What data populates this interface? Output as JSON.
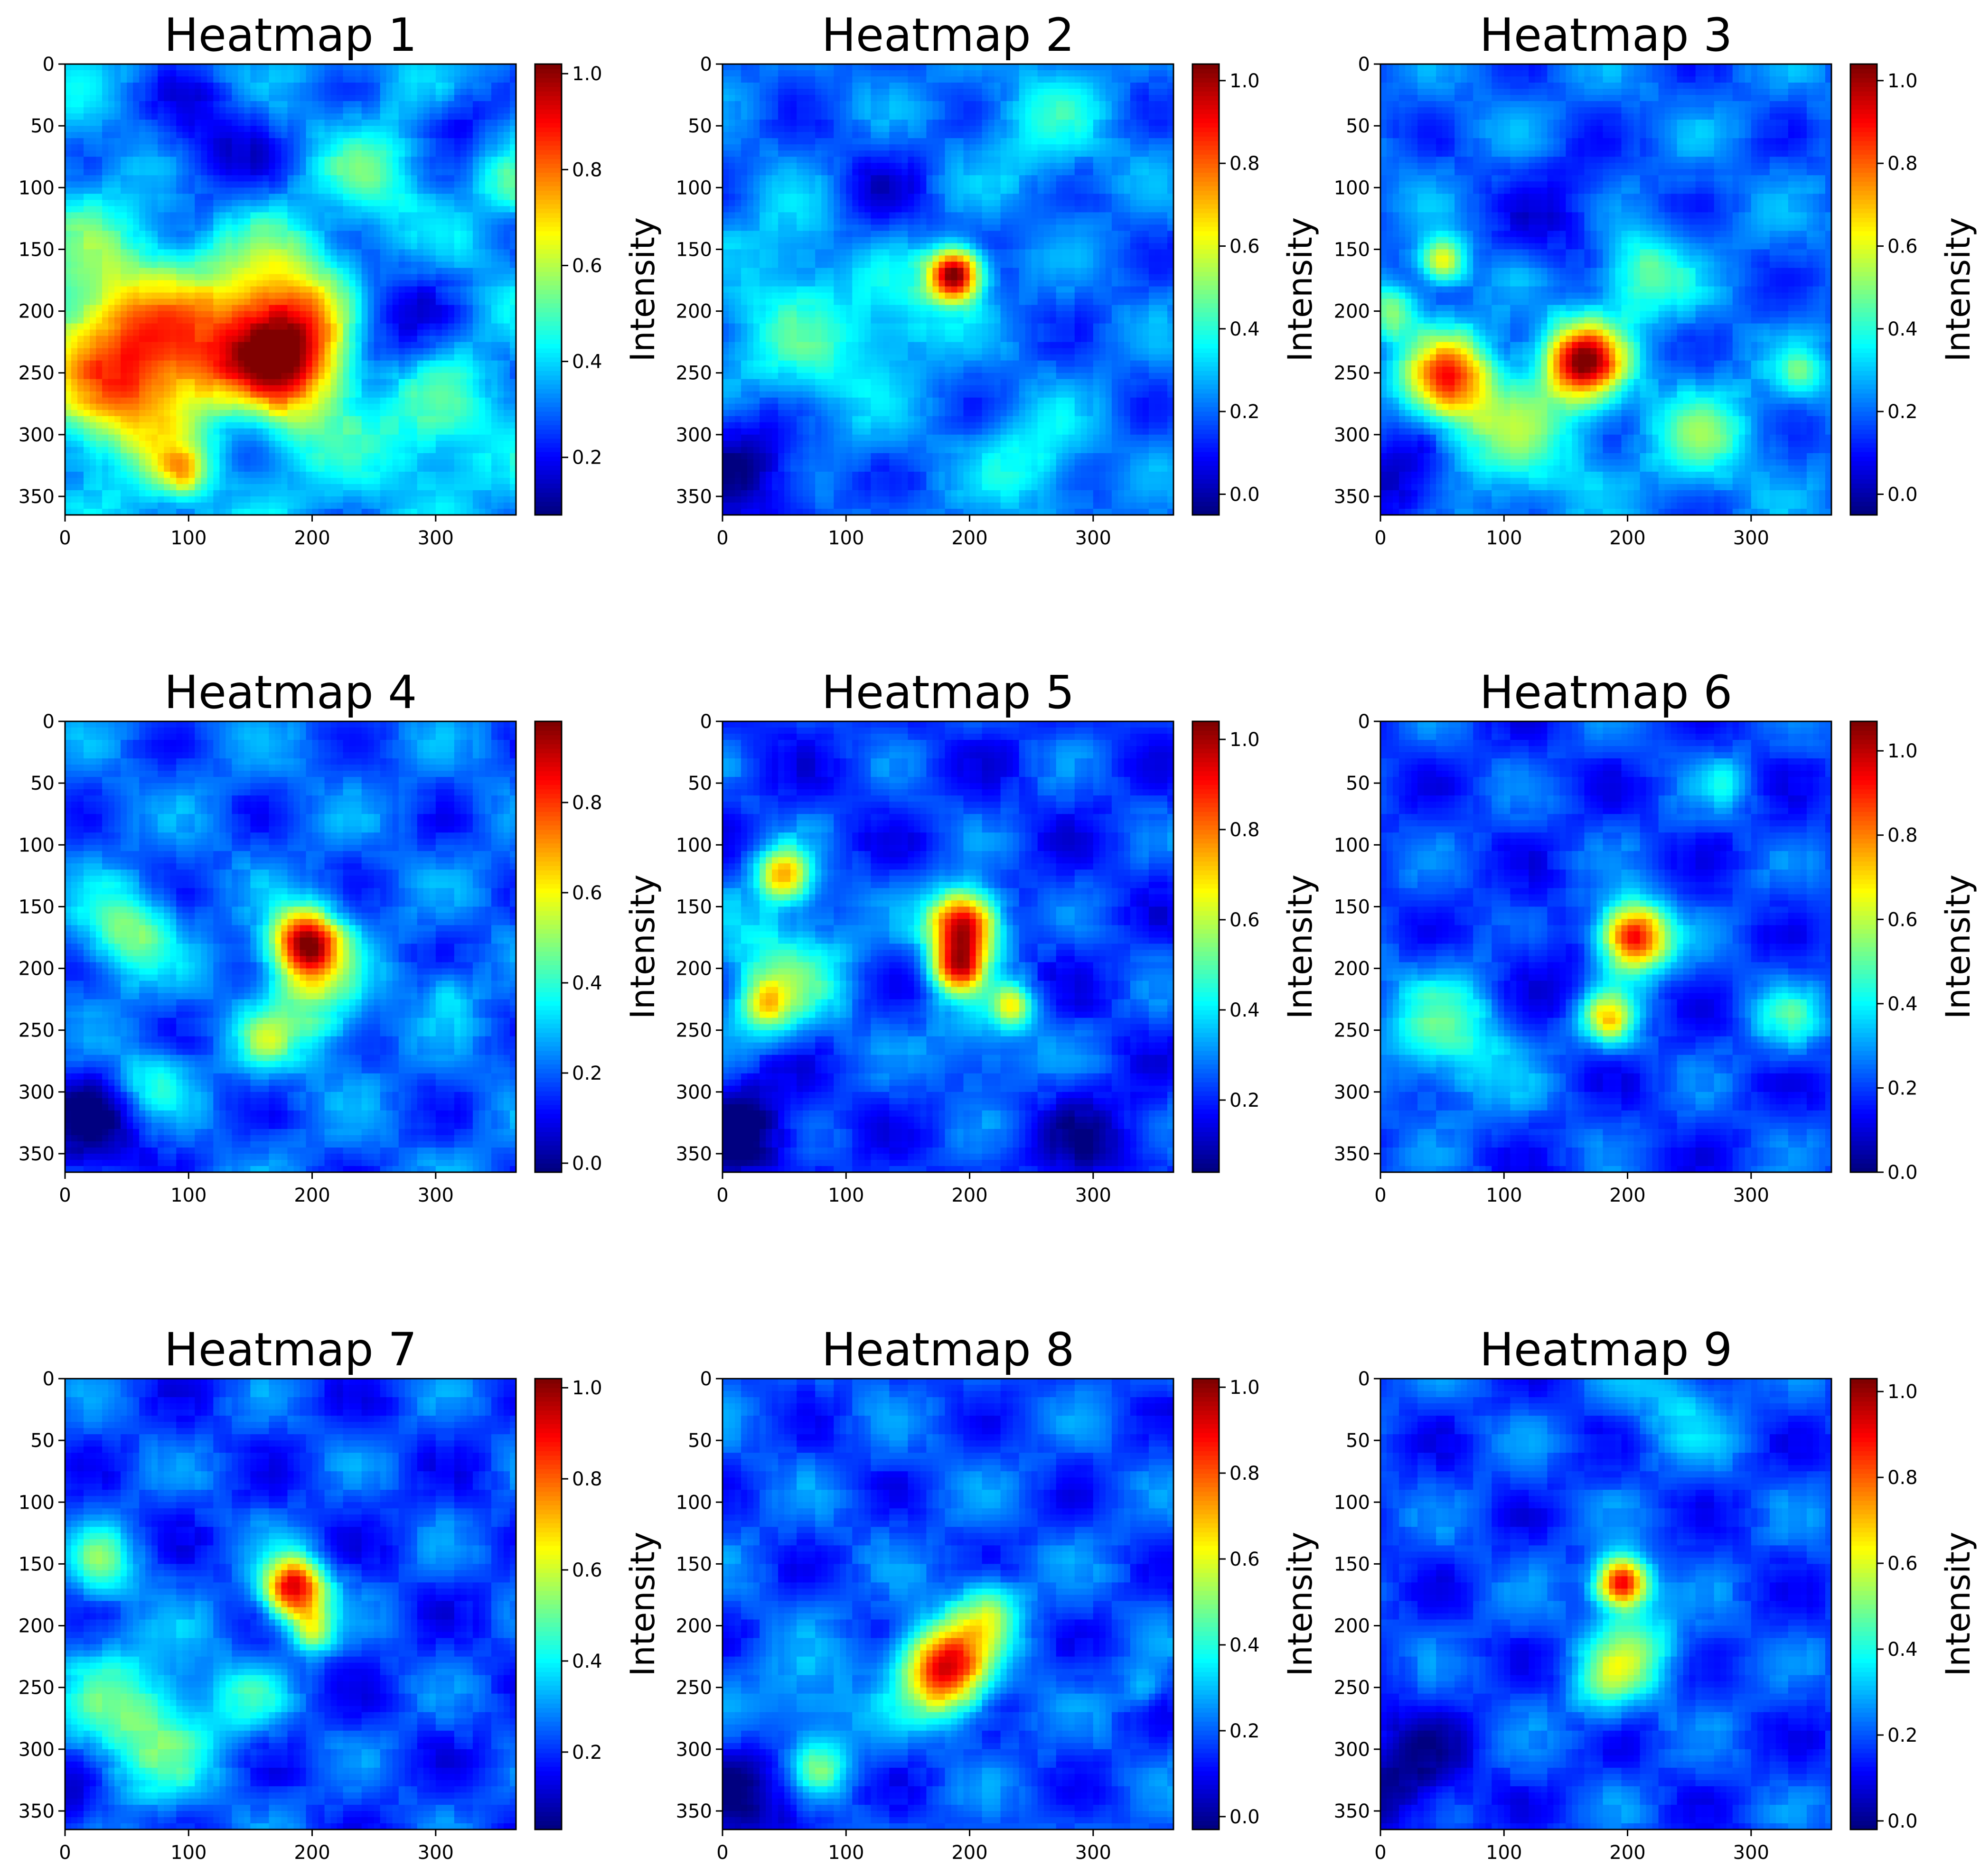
{
  "colormap": "jet",
  "chart_data": [
    {
      "type": "heatmap",
      "title": "Heatmap 1",
      "xticks": [
        "0",
        "100",
        "200",
        "300"
      ],
      "yticks": [
        "0",
        "50",
        "100",
        "150",
        "200",
        "250",
        "300",
        "350"
      ],
      "xlim": [
        0,
        365
      ],
      "ylim": [
        365,
        0
      ],
      "colorbar": {
        "label": "Intensity",
        "ticks": [
          "0.2",
          "0.4",
          "0.6",
          "0.8",
          "1.0"
        ],
        "min": 0.08,
        "max": 1.02
      },
      "base": 0.35,
      "blobs": [
        [
          175,
          225,
          45,
          0.75
        ],
        [
          60,
          255,
          45,
          0.45
        ],
        [
          95,
          330,
          15,
          0.25
        ],
        [
          30,
          190,
          50,
          0.2
        ],
        [
          300,
          290,
          35,
          0.15
        ],
        [
          250,
          90,
          25,
          0.15
        ],
        [
          360,
          100,
          15,
          0.15
        ]
      ],
      "lows": [
        [
          250,
          210,
          35,
          0.28
        ],
        [
          120,
          60,
          40,
          0.18
        ],
        [
          140,
          290,
          25,
          0.18
        ],
        [
          320,
          40,
          20,
          0.15
        ]
      ]
    },
    {
      "type": "heatmap",
      "title": "Heatmap 2",
      "xticks": [
        "0",
        "100",
        "200",
        "300"
      ],
      "yticks": [
        "0",
        "50",
        "100",
        "150",
        "200",
        "250",
        "300",
        "350"
      ],
      "xlim": [
        0,
        365
      ],
      "ylim": [
        365,
        0
      ],
      "colorbar": {
        "label": "Intensity",
        "ticks": [
          "0.0",
          "0.2",
          "0.4",
          "0.6",
          "0.8",
          "1.0"
        ],
        "min": -0.05,
        "max": 1.04
      },
      "base": 0.2,
      "blobs": [
        [
          188,
          170,
          15,
          0.85
        ],
        [
          60,
          240,
          50,
          0.2
        ],
        [
          250,
          320,
          30,
          0.18
        ],
        [
          150,
          200,
          30,
          0.15
        ],
        [
          260,
          50,
          35,
          0.15
        ],
        [
          60,
          140,
          30,
          0.12
        ]
      ],
      "lows": [
        [
          20,
          320,
          40,
          0.25
        ],
        [
          120,
          110,
          30,
          0.12
        ]
      ]
    },
    {
      "type": "heatmap",
      "title": "Heatmap 3",
      "xticks": [
        "0",
        "100",
        "200",
        "300"
      ],
      "yticks": [
        "0",
        "50",
        "100",
        "150",
        "200",
        "250",
        "300",
        "350"
      ],
      "xlim": [
        0,
        365
      ],
      "ylim": [
        365,
        0
      ],
      "colorbar": {
        "label": "Intensity",
        "ticks": [
          "0.0",
          "0.2",
          "0.4",
          "0.6",
          "0.8",
          "1.0"
        ],
        "min": -0.05,
        "max": 1.04
      },
      "base": 0.2,
      "blobs": [
        [
          165,
          240,
          22,
          0.8
        ],
        [
          55,
          255,
          25,
          0.6
        ],
        [
          50,
          160,
          13,
          0.45
        ],
        [
          10,
          200,
          15,
          0.3
        ],
        [
          210,
          170,
          25,
          0.3
        ],
        [
          110,
          300,
          40,
          0.25
        ],
        [
          260,
          300,
          30,
          0.25
        ],
        [
          340,
          250,
          15,
          0.2
        ]
      ],
      "lows": [
        [
          20,
          340,
          30,
          0.2
        ],
        [
          150,
          120,
          35,
          0.12
        ]
      ]
    },
    {
      "type": "heatmap",
      "title": "Heatmap 4",
      "xticks": [
        "0",
        "100",
        "200",
        "300"
      ],
      "yticks": [
        "0",
        "50",
        "100",
        "150",
        "200",
        "250",
        "300",
        "350"
      ],
      "xlim": [
        0,
        365
      ],
      "ylim": [
        365,
        0
      ],
      "colorbar": {
        "label": "Intensity",
        "ticks": [
          "0.0",
          "0.2",
          "0.4",
          "0.6",
          "0.8"
        ],
        "min": -0.02,
        "max": 0.98
      },
      "base": 0.2,
      "blobs": [
        [
          195,
          180,
          20,
          0.75
        ],
        [
          200,
          230,
          30,
          0.25
        ],
        [
          50,
          170,
          25,
          0.3
        ],
        [
          70,
          290,
          20,
          0.2
        ],
        [
          160,
          260,
          15,
          0.2
        ],
        [
          310,
          220,
          15,
          0.15
        ]
      ],
      "lows": [
        [
          20,
          330,
          35,
          0.2
        ]
      ]
    },
    {
      "type": "heatmap",
      "title": "Heatmap 5",
      "xticks": [
        "0",
        "100",
        "200",
        "300"
      ],
      "yticks": [
        "0",
        "50",
        "100",
        "150",
        "200",
        "250",
        "300",
        "350"
      ],
      "xlim": [
        0,
        365
      ],
      "ylim": [
        365,
        0
      ],
      "colorbar": {
        "label": "Intensity",
        "ticks": [
          "0.2",
          "0.4",
          "0.6",
          "0.8",
          "1.0"
        ],
        "min": 0.04,
        "max": 1.04
      },
      "base": 0.22,
      "blobs": [
        [
          195,
          165,
          20,
          0.8
        ],
        [
          190,
          200,
          15,
          0.55
        ],
        [
          235,
          230,
          12,
          0.35
        ],
        [
          50,
          125,
          15,
          0.5
        ],
        [
          35,
          230,
          15,
          0.3
        ],
        [
          50,
          200,
          40,
          0.25
        ],
        [
          210,
          260,
          30,
          0.15
        ]
      ],
      "lows": [
        [
          20,
          330,
          30,
          0.2
        ],
        [
          300,
          340,
          30,
          0.12
        ]
      ]
    },
    {
      "type": "heatmap",
      "title": "Heatmap 6",
      "xticks": [
        "0",
        "100",
        "200",
        "300"
      ],
      "yticks": [
        "0",
        "50",
        "100",
        "150",
        "200",
        "250",
        "300",
        "350"
      ],
      "xlim": [
        0,
        365
      ],
      "ylim": [
        365,
        0
      ],
      "colorbar": {
        "label": "Intensity",
        "ticks": [
          "0.0",
          "0.2",
          "0.4",
          "0.6",
          "0.8",
          "1.0"
        ],
        "min": 0,
        "max": 1.07
      },
      "base": 0.2,
      "blobs": [
        [
          205,
          175,
          20,
          0.8
        ],
        [
          185,
          240,
          15,
          0.45
        ],
        [
          60,
          250,
          40,
          0.25
        ],
        [
          330,
          240,
          20,
          0.2
        ],
        [
          280,
          50,
          15,
          0.15
        ]
      ],
      "lows": [
        [
          120,
          200,
          30,
          0.12
        ]
      ]
    },
    {
      "type": "heatmap",
      "title": "Heatmap 7",
      "xticks": [
        "0",
        "100",
        "200",
        "300"
      ],
      "yticks": [
        "0",
        "50",
        "100",
        "150",
        "200",
        "250",
        "300",
        "350"
      ],
      "xlim": [
        0,
        365
      ],
      "ylim": [
        365,
        0
      ],
      "colorbar": {
        "label": "Intensity",
        "ticks": [
          "0.2",
          "0.4",
          "0.6",
          "0.8",
          "1.0"
        ],
        "min": 0.03,
        "max": 1.02
      },
      "base": 0.22,
      "blobs": [
        [
          185,
          170,
          18,
          0.75
        ],
        [
          200,
          205,
          12,
          0.35
        ],
        [
          60,
          280,
          45,
          0.3
        ],
        [
          30,
          150,
          20,
          0.25
        ],
        [
          150,
          260,
          20,
          0.15
        ]
      ],
      "lows": [
        [
          10,
          340,
          25,
          0.15
        ]
      ]
    },
    {
      "type": "heatmap",
      "title": "Heatmap 8",
      "xticks": [
        "0",
        "100",
        "200",
        "300"
      ],
      "yticks": [
        "0",
        "50",
        "100",
        "150",
        "200",
        "250",
        "300",
        "350"
      ],
      "xlim": [
        0,
        365
      ],
      "ylim": [
        365,
        0
      ],
      "colorbar": {
        "label": "Intensity",
        "ticks": [
          "0.0",
          "0.2",
          "0.4",
          "0.6",
          "0.8",
          "1.0"
        ],
        "min": -0.03,
        "max": 1.02
      },
      "base": 0.18,
      "blobs": [
        [
          180,
          235,
          25,
          0.75
        ],
        [
          215,
          190,
          20,
          0.3
        ],
        [
          80,
          315,
          15,
          0.25
        ],
        [
          70,
          270,
          30,
          0.15
        ],
        [
          340,
          250,
          10,
          0.15
        ]
      ],
      "lows": [
        [
          20,
          340,
          35,
          0.18
        ]
      ]
    },
    {
      "type": "heatmap",
      "title": "Heatmap 9",
      "xticks": [
        "0",
        "100",
        "200",
        "300"
      ],
      "yticks": [
        "0",
        "50",
        "100",
        "150",
        "200",
        "250",
        "300",
        "350"
      ],
      "xlim": [
        0,
        365
      ],
      "ylim": [
        365,
        0
      ],
      "colorbar": {
        "label": "Intensity",
        "ticks": [
          "0.0",
          "0.2",
          "0.4",
          "0.6",
          "0.8",
          "1.0"
        ],
        "min": -0.02,
        "max": 1.03
      },
      "base": 0.18,
      "blobs": [
        [
          195,
          165,
          15,
          0.8
        ],
        [
          205,
          220,
          25,
          0.3
        ],
        [
          180,
          250,
          20,
          0.2
        ],
        [
          240,
          20,
          30,
          0.15
        ]
      ],
      "lows": [
        [
          20,
          320,
          35,
          0.18
        ]
      ]
    }
  ]
}
